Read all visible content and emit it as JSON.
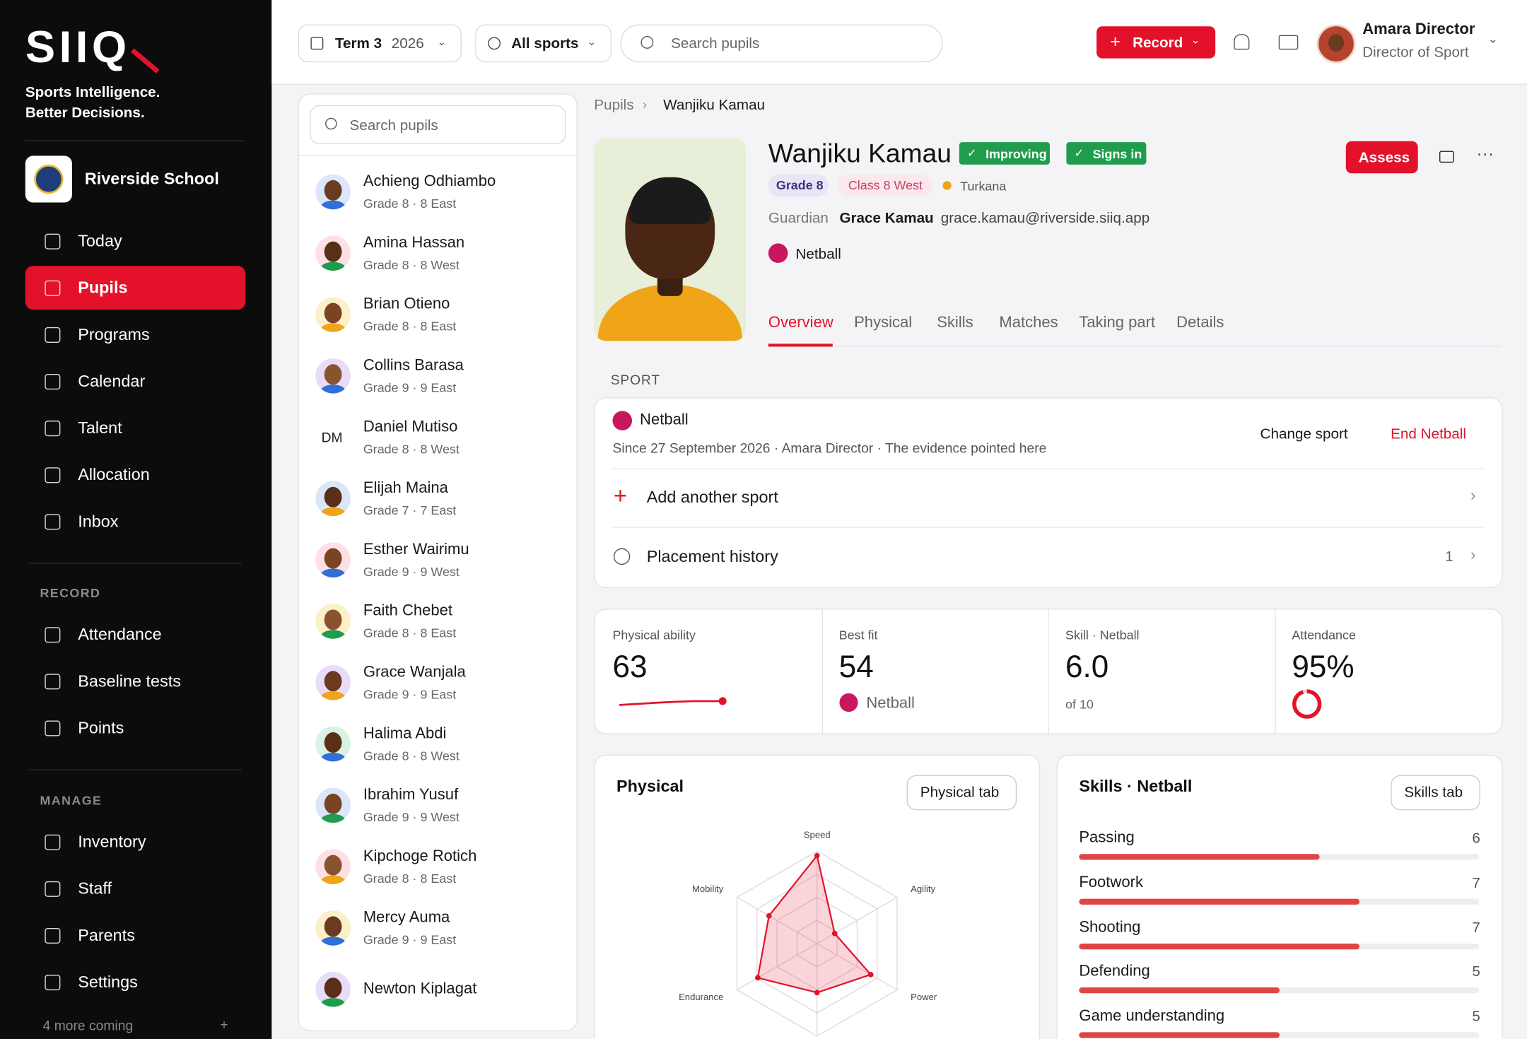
{
  "brand": {
    "logo": "SIIQ",
    "tagline": [
      "Sports Intelligence.",
      "Better Decisions."
    ]
  },
  "school": "Riverside School",
  "nav": [
    "Today",
    "Pupils",
    "Programs",
    "Calendar",
    "Talent",
    "Allocation",
    "Inbox"
  ],
  "active_nav": 1,
  "record": {
    "heading": "RECORD",
    "items": [
      "Attendance",
      "Baseline tests",
      "Points"
    ]
  },
  "manage": {
    "heading": "MANAGE",
    "items": [
      "Inventory",
      "Staff",
      "Parents",
      "Settings"
    ]
  },
  "more": {
    "label": "4 more coming",
    "action": "+"
  },
  "topbar": {
    "term": "Term 3",
    "year": "2026",
    "sports": "All sports",
    "search": "Search pupils",
    "record": "Record",
    "user": {
      "name": "Amara Director",
      "role": "Director of Sport"
    }
  },
  "pupil_list": {
    "search": "Search pupils",
    "pupils": [
      {
        "name": "Achieng Odhiambo",
        "meta": "Grade 8 · 8 East"
      },
      {
        "name": "Amina Hassan",
        "meta": "Grade 8 · 8 West"
      },
      {
        "name": "Brian Otieno",
        "meta": "Grade 8 · 8 East"
      },
      {
        "name": "Collins Barasa",
        "meta": "Grade 9 · 9 East"
      },
      {
        "name": "Daniel Mutiso",
        "meta": "Grade 8 · 8 West",
        "initials": "DM"
      },
      {
        "name": "Elijah Maina",
        "meta": "Grade 7 · 7 East"
      },
      {
        "name": "Esther Wairimu",
        "meta": "Grade 9 · 9 West"
      },
      {
        "name": "Faith Chebet",
        "meta": "Grade 8 · 8 East"
      },
      {
        "name": "Grace Wanjala",
        "meta": "Grade 9 · 9 East"
      },
      {
        "name": "Halima Abdi",
        "meta": "Grade 8 · 8 West"
      },
      {
        "name": "Ibrahim Yusuf",
        "meta": "Grade 9 · 9 West"
      },
      {
        "name": "Kipchoge Rotich",
        "meta": "Grade 8 · 8 East"
      },
      {
        "name": "Mercy Auma",
        "meta": "Grade 9 · 9 East"
      },
      {
        "name": "Newton Kiplagat"
      }
    ]
  },
  "breadcrumb": [
    "Pupils",
    "Wanjiku Kamau"
  ],
  "profile": {
    "name": "Wanjiku Kamau",
    "badges": [
      "Improving",
      "Signs in"
    ],
    "grade": "Grade 8",
    "class": "Class 8 West",
    "house": "Turkana",
    "guardian_label": "Guardian",
    "guardian": "Grace Kamau",
    "email": "grace.kamau@riverside.siiq.app",
    "sport": "Netball",
    "assess": "Assess"
  },
  "tabs": [
    "Overview",
    "Physical",
    "Skills",
    "Matches",
    "Taking part",
    "Details"
  ],
  "sport": {
    "heading": "SPORT",
    "current": "Netball",
    "since": "Since 27 September 2026 · Amara Director · The evidence pointed here",
    "change": "Change sport",
    "end": "End Netball",
    "add": "Add another sport",
    "history": "Placement history",
    "history_count": "1"
  },
  "stats": [
    {
      "label": "Physical ability",
      "value": 63
    },
    {
      "label": "Best fit",
      "value": 54,
      "sub": "Netball"
    },
    {
      "label": "Skill · Netball",
      "value": 6,
      "value_label": "6.0",
      "sub": "of 10"
    },
    {
      "label": "Attendance",
      "value": 95,
      "value_label": "95%"
    }
  ],
  "physical": {
    "title": "Physical",
    "button": "Physical tab",
    "chart_data": {
      "type": "radar",
      "categories": [
        "Speed",
        "Agility",
        "Power",
        null,
        "Endurance",
        "Mobility"
      ],
      "values": [
        95,
        22,
        67,
        53,
        74,
        60
      ],
      "rlim": [
        0,
        100
      ],
      "color": "#e3122a"
    }
  },
  "skills": {
    "title": "Skills · Netball",
    "button": "Skills tab",
    "chart_data": {
      "type": "bar",
      "categories": [
        "Passing",
        "Footwork",
        "Shooting",
        "Defending",
        "Game understanding"
      ],
      "values": [
        6,
        7,
        7,
        5,
        5
      ],
      "xlim": [
        0,
        10
      ],
      "color": "#e04545"
    }
  }
}
